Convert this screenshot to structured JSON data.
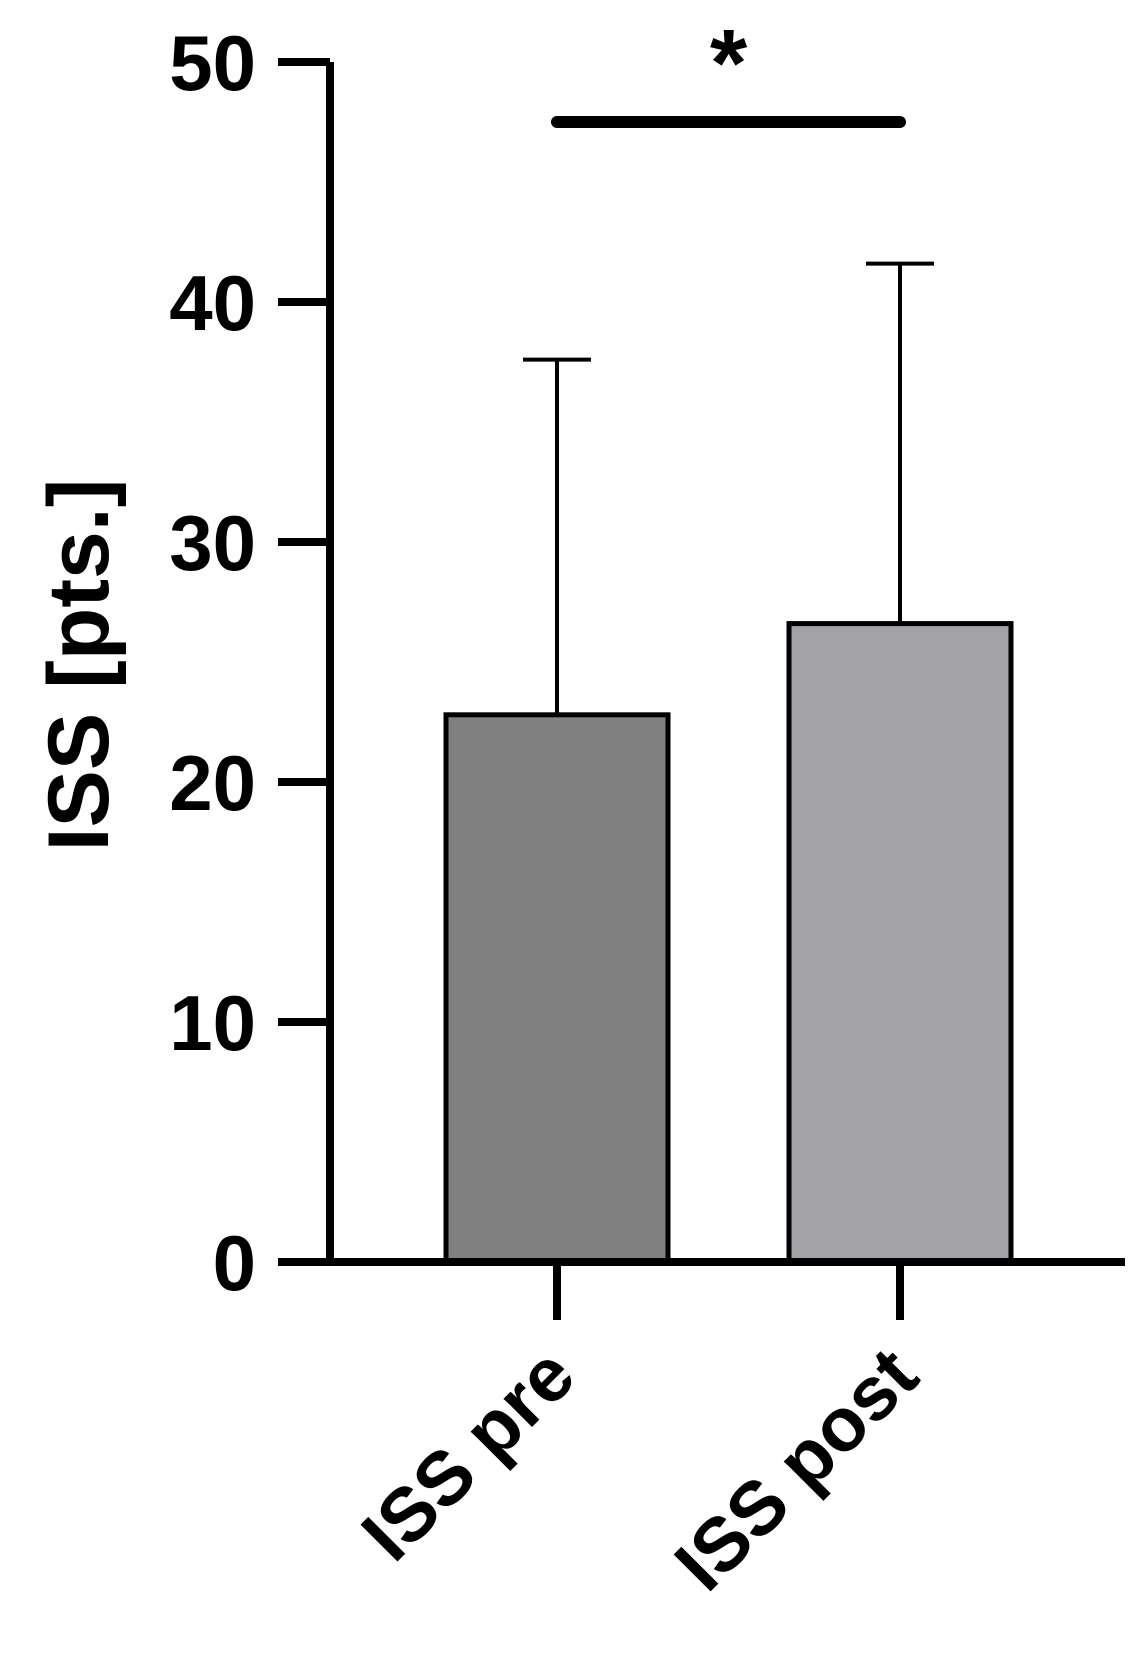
{
  "chart_data": {
    "type": "bar",
    "title": "",
    "xlabel": "",
    "ylabel": "ISS [pts.]",
    "ylim": [
      0,
      50
    ],
    "yticks": [
      0,
      10,
      20,
      30,
      40,
      50
    ],
    "categories": [
      "ISS pre",
      "ISS post"
    ],
    "values": [
      22.8,
      26.6
    ],
    "error_upper": [
      37.6,
      41.6
    ],
    "colors": [
      "#808080",
      "#a2a2a7"
    ],
    "grid": false,
    "legend": "none",
    "annotations": [
      {
        "text": "*",
        "between": [
          "ISS pre",
          "ISS post"
        ],
        "level": 47.5
      }
    ]
  }
}
